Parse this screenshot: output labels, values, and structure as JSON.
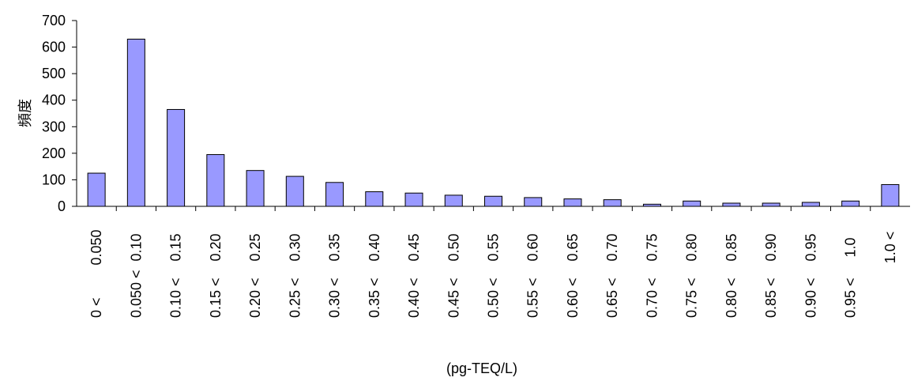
{
  "chart_data": {
    "type": "bar",
    "title": "",
    "xlabel": "(pg-TEQ/L)",
    "ylabel": "頻度",
    "ylim": [
      0,
      700
    ],
    "yticks": [
      0,
      100,
      200,
      300,
      400,
      500,
      600,
      700
    ],
    "grid": false,
    "legend": "none",
    "bar_color": "#9999ff",
    "categories": [
      {
        "upper": "0.050",
        "lower": "0 <"
      },
      {
        "upper": "0.10",
        "lower": "0.050 <"
      },
      {
        "upper": "0.15",
        "lower": "0.10 <"
      },
      {
        "upper": "0.20",
        "lower": "0.15 <"
      },
      {
        "upper": "0.25",
        "lower": "0.20 <"
      },
      {
        "upper": "0.30",
        "lower": "0.25 <"
      },
      {
        "upper": "0.35",
        "lower": "0.30 <"
      },
      {
        "upper": "0.40",
        "lower": "0.35 <"
      },
      {
        "upper": "0.45",
        "lower": "0.40 <"
      },
      {
        "upper": "0.50",
        "lower": "0.45 <"
      },
      {
        "upper": "0.55",
        "lower": "0.50 <"
      },
      {
        "upper": "0.60",
        "lower": "0.55 <"
      },
      {
        "upper": "0.65",
        "lower": "0.60 <"
      },
      {
        "upper": "0.70",
        "lower": "0.65 <"
      },
      {
        "upper": "0.75",
        "lower": "0.70 <"
      },
      {
        "upper": "0.80",
        "lower": "0.75 <"
      },
      {
        "upper": "0.85",
        "lower": "0.80 <"
      },
      {
        "upper": "0.90",
        "lower": "0.85 <"
      },
      {
        "upper": "0.95",
        "lower": "0.90 <"
      },
      {
        "upper": "1.0",
        "lower": "0.95 <"
      },
      {
        "upper": "1.0 <",
        "lower": ""
      }
    ],
    "values": [
      125,
      630,
      365,
      195,
      135,
      113,
      90,
      55,
      50,
      42,
      38,
      33,
      28,
      25,
      8,
      20,
      12,
      12,
      15,
      20,
      82
    ]
  }
}
